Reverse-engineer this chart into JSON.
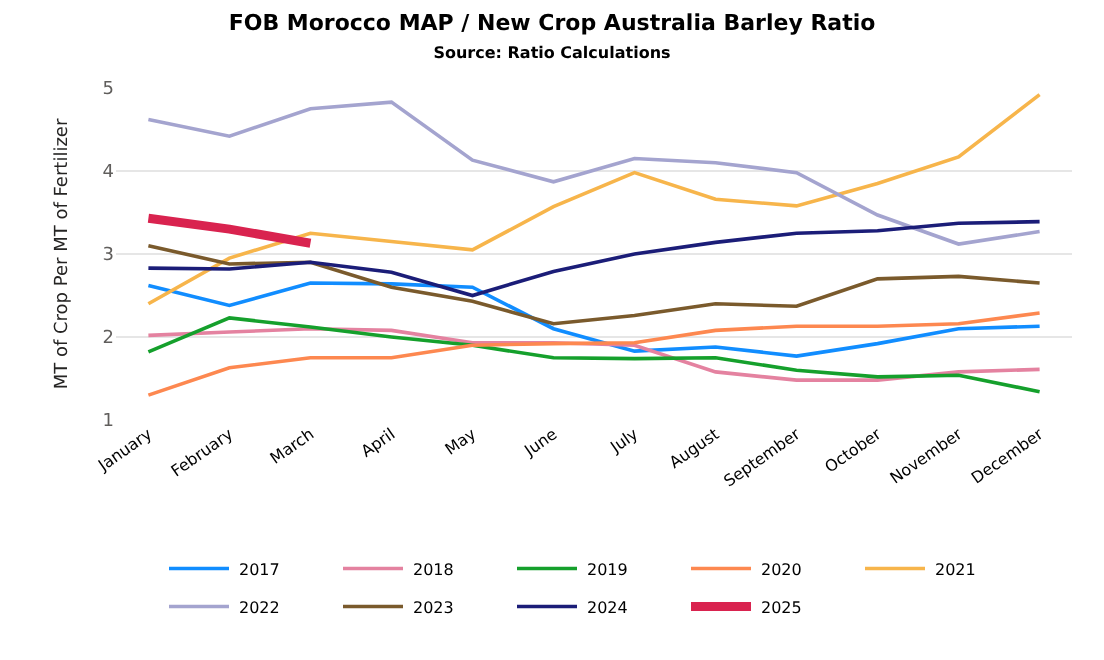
{
  "chart_data": {
    "type": "line",
    "title": "FOB Morocco MAP / New Crop Australia Barley Ratio",
    "subtitle": "Source: Ratio Calculations",
    "ylabel": "MT of Crop Per MT of Fertilizer",
    "categories": [
      "January",
      "February",
      "March",
      "April",
      "May",
      "June",
      "July",
      "August",
      "September",
      "October",
      "November",
      "December"
    ],
    "series": [
      {
        "name": "2017",
        "color": "#118dff",
        "values": [
          2.62,
          2.38,
          2.65,
          2.64,
          2.6,
          2.1,
          1.83,
          1.88,
          1.77,
          1.92,
          2.1,
          2.13
        ]
      },
      {
        "name": "2018",
        "color": "#e482a0",
        "values": [
          2.02,
          2.06,
          2.1,
          2.08,
          1.93,
          1.93,
          1.9,
          1.58,
          1.48,
          1.48,
          1.58,
          1.61
        ]
      },
      {
        "name": "2019",
        "color": "#15a02c",
        "values": [
          1.82,
          2.23,
          2.12,
          2.0,
          1.9,
          1.75,
          1.74,
          1.75,
          1.6,
          1.52,
          1.54,
          1.34
        ]
      },
      {
        "name": "2020",
        "color": "#fd8850",
        "values": [
          1.3,
          1.63,
          1.75,
          1.75,
          1.9,
          1.92,
          1.93,
          2.08,
          2.13,
          2.13,
          2.16,
          2.29
        ]
      },
      {
        "name": "2021",
        "color": "#f7b54b",
        "values": [
          2.4,
          2.95,
          3.25,
          3.15,
          3.05,
          3.57,
          3.98,
          3.66,
          3.58,
          3.85,
          4.17,
          4.92
        ]
      },
      {
        "name": "2022",
        "color": "#a4a4cf",
        "values": [
          4.62,
          4.42,
          4.75,
          4.83,
          4.13,
          3.87,
          4.15,
          4.1,
          3.98,
          3.47,
          3.12,
          3.27
        ]
      },
      {
        "name": "2023",
        "color": "#7a5a2c",
        "values": [
          3.1,
          2.88,
          2.9,
          2.6,
          2.43,
          2.16,
          2.26,
          2.4,
          2.37,
          2.7,
          2.73,
          2.65
        ]
      },
      {
        "name": "2024",
        "color": "#1b1d78",
        "values": [
          2.83,
          2.82,
          2.9,
          2.78,
          2.5,
          2.79,
          3.0,
          3.14,
          3.25,
          3.28,
          3.37,
          3.39
        ]
      },
      {
        "name": "2025",
        "color": "#d9234f",
        "values": [
          3.43,
          3.3,
          3.13,
          null,
          null,
          null,
          null,
          null,
          null,
          null,
          null,
          null
        ]
      }
    ],
    "ylim": [
      1,
      5
    ],
    "yticks": [
      1,
      2,
      3,
      4,
      5
    ],
    "grid": "y",
    "legend": "bottom",
    "marker": "none",
    "line_style": "solid"
  }
}
